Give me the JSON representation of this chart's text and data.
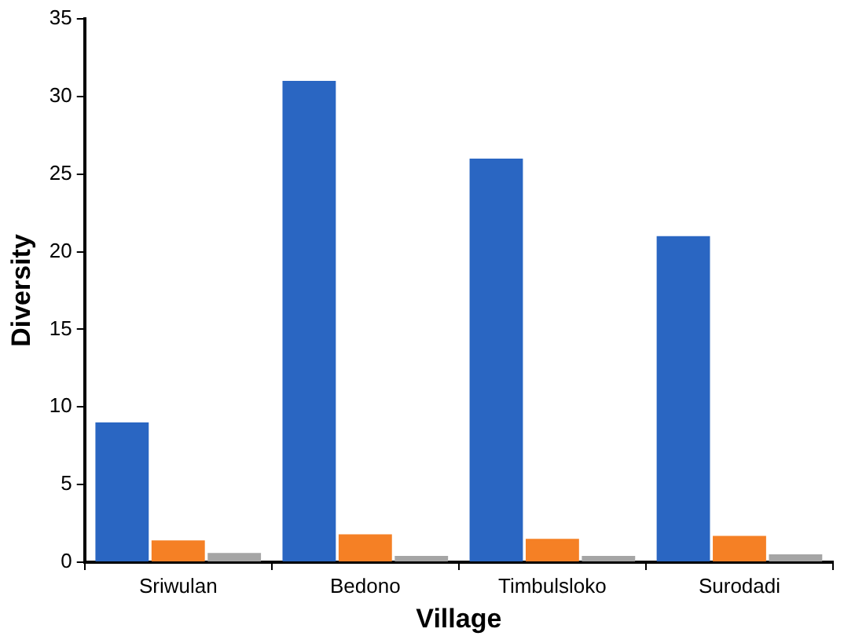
{
  "chart_data": {
    "type": "bar",
    "xlabel": "Village",
    "ylabel": "Diversity",
    "categories": [
      "Sriwulan",
      "Bedono",
      "Timbulsloko",
      "Surodadi"
    ],
    "series": [
      {
        "color": "#2a66c2",
        "values": [
          9,
          31,
          26,
          21
        ]
      },
      {
        "color": "#f58025",
        "values": [
          1.4,
          1.8,
          1.5,
          1.7
        ]
      },
      {
        "color": "#a5a5a5",
        "values": [
          0.6,
          0.4,
          0.4,
          0.5
        ]
      }
    ],
    "ylim": [
      0,
      35
    ],
    "yticks": [
      0,
      5,
      10,
      15,
      20,
      25,
      30,
      35
    ],
    "grid": false,
    "legend": false
  }
}
